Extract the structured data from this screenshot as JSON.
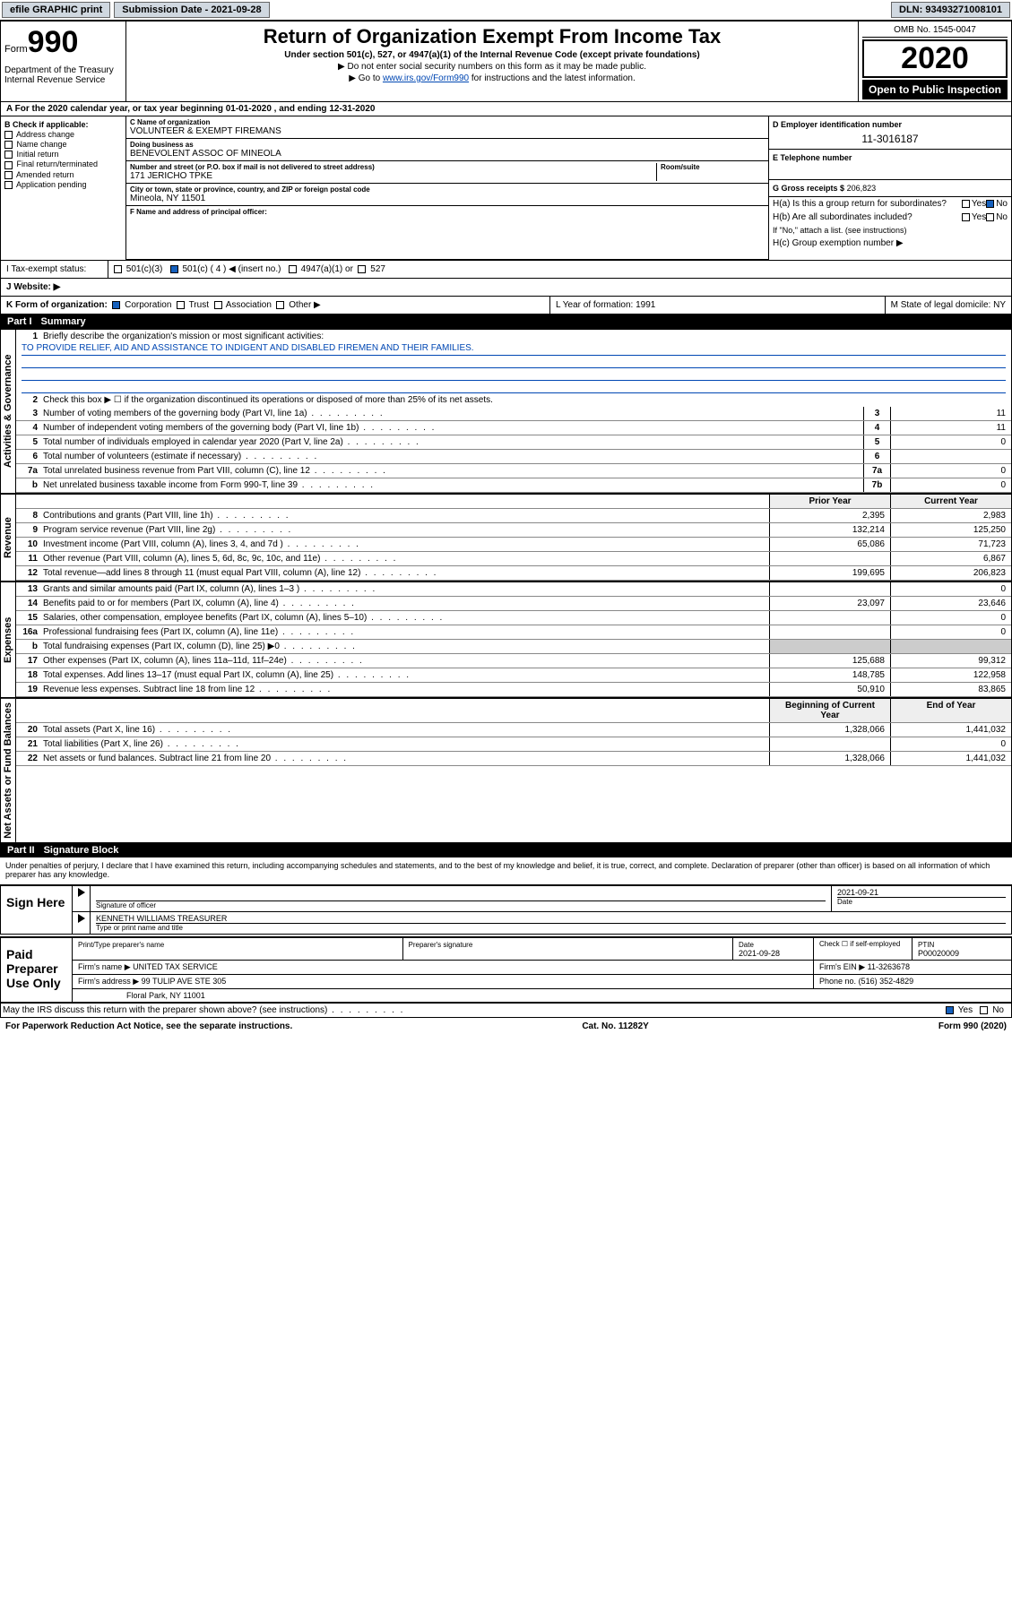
{
  "topbar": {
    "efile": "efile GRAPHIC print",
    "sub_label": "Submission Date - 2021-09-28",
    "dln": "DLN: 93493271008101"
  },
  "header": {
    "form_word": "Form",
    "form_num": "990",
    "dept": "Department of the Treasury\nInternal Revenue Service",
    "title": "Return of Organization Exempt From Income Tax",
    "sub1": "Under section 501(c), 527, or 4947(a)(1) of the Internal Revenue Code (except private foundations)",
    "sub2": "▶ Do not enter social security numbers on this form as it may be made public.",
    "sub3_pre": "▶ Go to ",
    "sub3_link": "www.irs.gov/Form990",
    "sub3_post": " for instructions and the latest information.",
    "omb": "OMB No. 1545-0047",
    "year": "2020",
    "open": "Open to Public Inspection"
  },
  "lineA": "A For the 2020 calendar year, or tax year beginning 01-01-2020   , and ending 12-31-2020",
  "boxB": {
    "title": "B Check if applicable:",
    "opts": [
      "Address change",
      "Name change",
      "Initial return",
      "Final return/terminated",
      "Amended return",
      "Application pending"
    ]
  },
  "boxC": {
    "name_lbl": "C Name of organization",
    "name": "VOLUNTEER & EXEMPT FIREMANS",
    "dba_lbl": "Doing business as",
    "dba": "BENEVOLENT ASSOC OF MINEOLA",
    "addr_lbl": "Number and street (or P.O. box if mail is not delivered to street address)",
    "addr": "171 JERICHO TPKE",
    "room_lbl": "Room/suite",
    "city_lbl": "City or town, state or province, country, and ZIP or foreign postal code",
    "city": "Mineola, NY  11501",
    "officer_lbl": "F Name and address of principal officer:"
  },
  "boxD": {
    "lbl": "D Employer identification number",
    "val": "11-3016187"
  },
  "boxE": {
    "lbl": "E Telephone number"
  },
  "boxG": {
    "lbl": "G Gross receipts $",
    "val": "206,823"
  },
  "boxH": {
    "a": "H(a)  Is this a group return for subordinates?",
    "b": "H(b)  Are all subordinates included?",
    "note": "If \"No,\" attach a list. (see instructions)",
    "c": "H(c)  Group exemption number ▶"
  },
  "taxStatus": {
    "lbl": "I   Tax-exempt status:",
    "o1": "501(c)(3)",
    "o2": "501(c) ( 4 ) ◀ (insert no.)",
    "o3": "4947(a)(1) or",
    "o4": "527"
  },
  "website": {
    "lbl": "J   Website: ▶"
  },
  "korg": {
    "lbl": "K Form of organization:",
    "o1": "Corporation",
    "o2": "Trust",
    "o3": "Association",
    "o4": "Other ▶",
    "l": "L Year of formation: 1991",
    "m": "M State of legal domicile: NY"
  },
  "part1": {
    "hdr": "Part I",
    "title": "Summary"
  },
  "summary": {
    "l1": "Briefly describe the organization's mission or most significant activities:",
    "mission": "TO PROVIDE RELIEF, AID AND ASSISTANCE TO INDIGENT AND DISABLED FIREMEN AND THEIR FAMILIES.",
    "l2": "Check this box ▶ ☐  if the organization discontinued its operations or disposed of more than 25% of its net assets.",
    "rows_gov": [
      {
        "n": "3",
        "d": "Number of voting members of the governing body (Part VI, line 1a)",
        "box": "3",
        "v": "11"
      },
      {
        "n": "4",
        "d": "Number of independent voting members of the governing body (Part VI, line 1b)",
        "box": "4",
        "v": "11"
      },
      {
        "n": "5",
        "d": "Total number of individuals employed in calendar year 2020 (Part V, line 2a)",
        "box": "5",
        "v": "0"
      },
      {
        "n": "6",
        "d": "Total number of volunteers (estimate if necessary)",
        "box": "6",
        "v": ""
      },
      {
        "n": "7a",
        "d": "Total unrelated business revenue from Part VIII, column (C), line 12",
        "box": "7a",
        "v": "0"
      },
      {
        "n": "b",
        "d": "Net unrelated business taxable income from Form 990-T, line 39",
        "box": "7b",
        "v": "0"
      }
    ],
    "col_hdr": {
      "py": "Prior Year",
      "cy": "Current Year"
    },
    "rows_rev": [
      {
        "n": "8",
        "d": "Contributions and grants (Part VIII, line 1h)",
        "py": "2,395",
        "cy": "2,983"
      },
      {
        "n": "9",
        "d": "Program service revenue (Part VIII, line 2g)",
        "py": "132,214",
        "cy": "125,250"
      },
      {
        "n": "10",
        "d": "Investment income (Part VIII, column (A), lines 3, 4, and 7d )",
        "py": "65,086",
        "cy": "71,723"
      },
      {
        "n": "11",
        "d": "Other revenue (Part VIII, column (A), lines 5, 6d, 8c, 9c, 10c, and 11e)",
        "py": "",
        "cy": "6,867"
      },
      {
        "n": "12",
        "d": "Total revenue—add lines 8 through 11 (must equal Part VIII, column (A), line 12)",
        "py": "199,695",
        "cy": "206,823"
      }
    ],
    "rows_exp": [
      {
        "n": "13",
        "d": "Grants and similar amounts paid (Part IX, column (A), lines 1–3 )",
        "py": "",
        "cy": "0"
      },
      {
        "n": "14",
        "d": "Benefits paid to or for members (Part IX, column (A), line 4)",
        "py": "23,097",
        "cy": "23,646"
      },
      {
        "n": "15",
        "d": "Salaries, other compensation, employee benefits (Part IX, column (A), lines 5–10)",
        "py": "",
        "cy": "0"
      },
      {
        "n": "16a",
        "d": "Professional fundraising fees (Part IX, column (A), line 11e)",
        "py": "",
        "cy": "0"
      },
      {
        "n": "b",
        "d": "Total fundraising expenses (Part IX, column (D), line 25) ▶0",
        "py": "—",
        "cy": "—"
      },
      {
        "n": "17",
        "d": "Other expenses (Part IX, column (A), lines 11a–11d, 11f–24e)",
        "py": "125,688",
        "cy": "99,312"
      },
      {
        "n": "18",
        "d": "Total expenses. Add lines 13–17 (must equal Part IX, column (A), line 25)",
        "py": "148,785",
        "cy": "122,958"
      },
      {
        "n": "19",
        "d": "Revenue less expenses. Subtract line 18 from line 12",
        "py": "50,910",
        "cy": "83,865"
      }
    ],
    "col_hdr2": {
      "py": "Beginning of Current Year",
      "cy": "End of Year"
    },
    "rows_net": [
      {
        "n": "20",
        "d": "Total assets (Part X, line 16)",
        "py": "1,328,066",
        "cy": "1,441,032"
      },
      {
        "n": "21",
        "d": "Total liabilities (Part X, line 26)",
        "py": "",
        "cy": "0"
      },
      {
        "n": "22",
        "d": "Net assets or fund balances. Subtract line 21 from line 20",
        "py": "1,328,066",
        "cy": "1,441,032"
      }
    ]
  },
  "tabs": {
    "gov": "Activities & Governance",
    "rev": "Revenue",
    "exp": "Expenses",
    "net": "Net Assets or Fund Balances"
  },
  "part2": {
    "hdr": "Part II",
    "title": "Signature Block"
  },
  "sig": {
    "intro": "Under penalties of perjury, I declare that I have examined this return, including accompanying schedules and statements, and to the best of my knowledge and belief, it is true, correct, and complete. Declaration of preparer (other than officer) is based on all information of which preparer has any knowledge.",
    "sign_here": "Sign Here",
    "sig_officer": "Signature of officer",
    "sig_date": "2021-09-21",
    "date_lbl": "Date",
    "name": "KENNETH WILLIAMS TREASURER",
    "name_lbl": "Type or print name and title",
    "paid": "Paid Preparer Use Only",
    "prep_name_lbl": "Print/Type preparer's name",
    "prep_sig_lbl": "Preparer's signature",
    "prep_date_lbl": "Date",
    "prep_date": "2021-09-28",
    "check_lbl": "Check ☐ if self-employed",
    "ptin_lbl": "PTIN",
    "ptin": "P00020009",
    "firm_name_lbl": "Firm's name  ▶",
    "firm_name": "UNITED TAX SERVICE",
    "firm_ein_lbl": "Firm's EIN ▶",
    "firm_ein": "11-3263678",
    "firm_addr_lbl": "Firm's address ▶",
    "firm_addr": "99 TULIP AVE STE 305",
    "firm_city": "Floral Park, NY  11001",
    "phone_lbl": "Phone no.",
    "phone": "(516) 352-4829",
    "discuss": "May the IRS discuss this return with the preparer shown above? (see instructions)",
    "yes": "Yes",
    "no": "No"
  },
  "footer": {
    "left": "For Paperwork Reduction Act Notice, see the separate instructions.",
    "mid": "Cat. No. 11282Y",
    "right": "Form 990 (2020)"
  }
}
